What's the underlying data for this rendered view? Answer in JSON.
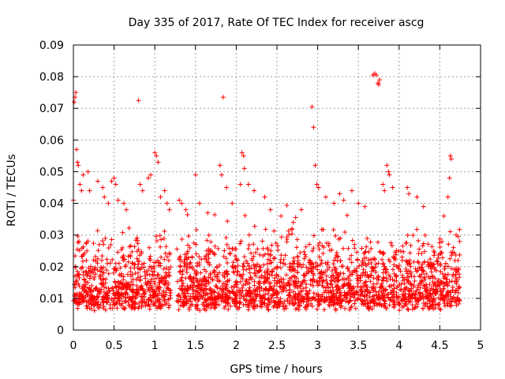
{
  "chart_data": {
    "type": "scatter",
    "title": "Day 335 of 2017, Rate Of TEC Index for receiver ascg",
    "xlabel": "GPS time / hours",
    "ylabel": "ROTI / TECUs",
    "xlim": [
      0,
      5
    ],
    "ylim": [
      0,
      0.09
    ],
    "x_ticks": [
      0,
      0.5,
      1,
      1.5,
      2,
      2.5,
      3,
      3.5,
      4,
      4.5,
      5
    ],
    "x_tick_labels": [
      "0",
      "0.5",
      "1",
      "1.5",
      "2",
      "2.5",
      "3",
      "3.5",
      "4",
      "4.5",
      "5"
    ],
    "y_ticks": [
      0,
      0.01,
      0.02,
      0.03,
      0.04,
      0.05,
      0.06,
      0.07,
      0.08,
      0.09
    ],
    "y_tick_labels": [
      "0",
      "0.01",
      "0.02",
      "0.03",
      "0.04",
      "0.05",
      "0.06",
      "0.07",
      "0.08",
      "0.09"
    ],
    "grid": true,
    "marker": "+",
    "color": "#ff0000",
    "series": [
      {
        "name": "ROTI",
        "points": [
          [
            0.0,
            0.041
          ],
          [
            0.01,
            0.072
          ],
          [
            0.02,
            0.0735
          ],
          [
            0.03,
            0.075
          ],
          [
            0.04,
            0.057
          ],
          [
            0.05,
            0.053
          ],
          [
            0.06,
            0.052
          ],
          [
            0.08,
            0.046
          ],
          [
            0.1,
            0.044
          ],
          [
            0.12,
            0.049
          ],
          [
            0.18,
            0.05
          ],
          [
            0.2,
            0.044
          ],
          [
            0.3,
            0.047
          ],
          [
            0.36,
            0.045
          ],
          [
            0.38,
            0.042
          ],
          [
            0.43,
            0.04
          ],
          [
            0.47,
            0.047
          ],
          [
            0.5,
            0.048
          ],
          [
            0.52,
            0.046
          ],
          [
            0.55,
            0.041
          ],
          [
            0.62,
            0.04
          ],
          [
            0.65,
            0.038
          ],
          [
            0.8,
            0.0725
          ],
          [
            0.82,
            0.046
          ],
          [
            0.85,
            0.044
          ],
          [
            0.92,
            0.048
          ],
          [
            0.95,
            0.049
          ],
          [
            1.0,
            0.056
          ],
          [
            1.02,
            0.055
          ],
          [
            1.04,
            0.053
          ],
          [
            1.07,
            0.042
          ],
          [
            1.12,
            0.044
          ],
          [
            1.15,
            0.04
          ],
          [
            1.18,
            0.038
          ],
          [
            1.3,
            0.041
          ],
          [
            1.33,
            0.04
          ],
          [
            1.38,
            0.038
          ],
          [
            1.5,
            0.049
          ],
          [
            1.55,
            0.04
          ],
          [
            1.65,
            0.037
          ],
          [
            1.8,
            0.052
          ],
          [
            1.82,
            0.049
          ],
          [
            1.84,
            0.0735
          ],
          [
            1.88,
            0.045
          ],
          [
            1.95,
            0.04
          ],
          [
            2.05,
            0.046
          ],
          [
            2.07,
            0.056
          ],
          [
            2.09,
            0.055
          ],
          [
            2.1,
            0.051
          ],
          [
            2.15,
            0.046
          ],
          [
            2.22,
            0.044
          ],
          [
            2.35,
            0.042
          ],
          [
            2.42,
            0.038
          ],
          [
            2.55,
            0.036
          ],
          [
            2.7,
            0.034
          ],
          [
            2.8,
            0.038
          ],
          [
            2.93,
            0.0705
          ],
          [
            2.95,
            0.064
          ],
          [
            2.97,
            0.052
          ],
          [
            2.99,
            0.046
          ],
          [
            3.01,
            0.045
          ],
          [
            3.1,
            0.042
          ],
          [
            3.2,
            0.04
          ],
          [
            3.27,
            0.043
          ],
          [
            3.32,
            0.041
          ],
          [
            3.42,
            0.044
          ],
          [
            3.5,
            0.04
          ],
          [
            3.58,
            0.039
          ],
          [
            3.68,
            0.0805
          ],
          [
            3.7,
            0.081
          ],
          [
            3.72,
            0.0805
          ],
          [
            3.74,
            0.078
          ],
          [
            3.75,
            0.0775
          ],
          [
            3.76,
            0.079
          ],
          [
            3.8,
            0.046
          ],
          [
            3.82,
            0.044
          ],
          [
            3.85,
            0.052
          ],
          [
            3.87,
            0.05
          ],
          [
            3.88,
            0.049
          ],
          [
            3.92,
            0.045
          ],
          [
            4.1,
            0.045
          ],
          [
            4.12,
            0.043
          ],
          [
            4.22,
            0.042
          ],
          [
            4.3,
            0.039
          ],
          [
            4.55,
            0.036
          ],
          [
            4.6,
            0.042
          ],
          [
            4.62,
            0.048
          ],
          [
            4.63,
            0.055
          ],
          [
            4.64,
            0.054
          ],
          [
            4.7,
            0.03
          ]
        ]
      }
    ],
    "dense_band": {
      "x_range": [
        0,
        4.75
      ],
      "y_range": [
        0.004,
        0.032
      ],
      "gaps_hours": [
        [
          1.2,
          1.27
        ]
      ],
      "description_points_estimated": true
    }
  }
}
